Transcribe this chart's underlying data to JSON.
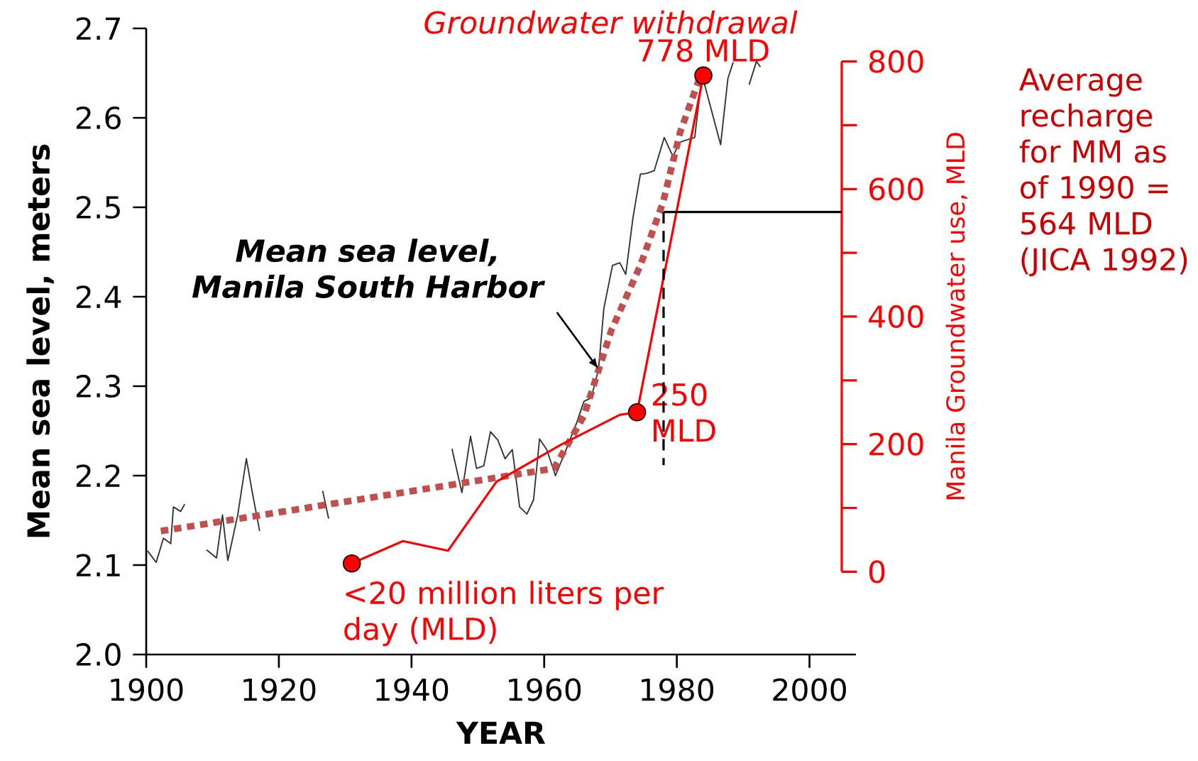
{
  "chart_data": {
    "type": "line",
    "title": "Groundwater withdrawal",
    "xlabel": "YEAR",
    "ylabel": "Mean sea level, meters",
    "y2label": "Manila Groundwater use, MLD",
    "xlim": [
      1900,
      2007
    ],
    "ylim": [
      2.0,
      2.7
    ],
    "y2lim": [
      0,
      800
    ],
    "xticks": [
      1900,
      1920,
      1940,
      1960,
      1980,
      2000
    ],
    "yticks": [
      {
        "value": 2.0,
        "label": "2.0"
      },
      2.1,
      2.2,
      2.3,
      2.4,
      2.5,
      2.6,
      2.7
    ],
    "y2ticks": [
      0,
      {
        "value": 100,
        "label": null
      },
      200,
      {
        "value": 300,
        "label": null
      },
      400,
      {
        "value": 500,
        "label": null
      },
      600,
      {
        "value": 700,
        "label": null
      },
      800
    ],
    "grid": false,
    "series": [
      {
        "color": "#333333",
        "line_style": "solid",
        "x": [
          1900.2,
          1901.5,
          1902.6,
          1903.7,
          1904.1,
          1905.2,
          1905.8,
          1907,
          1909.1,
          1910.6,
          1911.5,
          1912.3,
          1913.8,
          1915.1,
          1916,
          1917.1,
          1922,
          1926.6,
          1927.5,
          1935,
          1946.1,
          1947.6,
          1948.9,
          1949.8,
          1950.9,
          1951.9,
          1953,
          1954.1,
          1955.2,
          1956.3,
          1957.4,
          1958.4,
          1959.3,
          1960.4,
          1961.7,
          1963.2,
          1964.9,
          1966,
          1967.1,
          1968.2,
          1969,
          1970.3,
          1971.4,
          1972.3,
          1973.4,
          1974.5,
          1975.5,
          1976.6,
          1978.1,
          1979.4,
          1980.5,
          1982.7,
          1983.8,
          1986.6,
          1987.7,
          1988.5,
          1989.7,
          1990.9,
          1992,
          1992.6
        ],
        "values": [
          2.116,
          2.103,
          2.13,
          2.124,
          2.165,
          2.16,
          2.168,
          null,
          2.117,
          2.108,
          2.156,
          2.105,
          2.156,
          2.219,
          2.181,
          2.138,
          null,
          2.183,
          2.152,
          null,
          2.23,
          2.181,
          2.244,
          2.208,
          2.211,
          2.249,
          2.24,
          2.219,
          2.229,
          2.165,
          2.157,
          2.173,
          2.241,
          2.229,
          2.2,
          2.227,
          2.259,
          2.283,
          2.287,
          2.319,
          2.387,
          2.435,
          2.438,
          2.425,
          2.489,
          2.537,
          2.538,
          2.541,
          2.578,
          2.557,
          2.573,
          2.578,
          2.648,
          2.57,
          2.644,
          2.662,
          null,
          2.637,
          2.663,
          2.657
        ]
      },
      {
        "color": "#c0504d",
        "line_style": "dotted",
        "x": [
          1902.2,
          1961.5,
          1966,
          1970.1,
          1974.5,
          1977.9,
          1980.5,
          1983.8
        ],
        "values": [
          2.138,
          2.208,
          2.267,
          2.362,
          2.435,
          2.505,
          2.584,
          2.652
        ]
      },
      {
        "axis": "y2",
        "color": "#ff0000",
        "line_style": "solid",
        "x": [
          1931,
          1938.7,
          1945.5,
          1952.8,
          1962.5,
          1971.4,
          1974,
          1984
        ],
        "values": [
          13,
          48,
          33,
          141,
          199,
          246,
          250,
          778
        ]
      },
      {
        "type": "scatter",
        "axis": "y2",
        "color": "#ff0000",
        "marker": "circle",
        "x": [
          1931,
          1974,
          1984
        ],
        "values": [
          13,
          250,
          778
        ],
        "value_labels": [
          "<20 million liters per day (MLD)",
          "250 MLD",
          "778 MLD"
        ]
      }
    ],
    "ref_lines": [
      {
        "axis": "x",
        "value": 1978,
        "color": "#000000",
        "line_style": "dashed"
      },
      {
        "axis": "y2",
        "value": 564,
        "color": "#000000",
        "line_style": "solid"
      }
    ],
    "annotations": [
      {
        "text": "Mean sea level, Manila South Harbor",
        "x": 1968.2,
        "y": 2.319
      },
      "Average recharge for MM as of 1990 = 564 MLD (JICA 1992)"
    ]
  }
}
